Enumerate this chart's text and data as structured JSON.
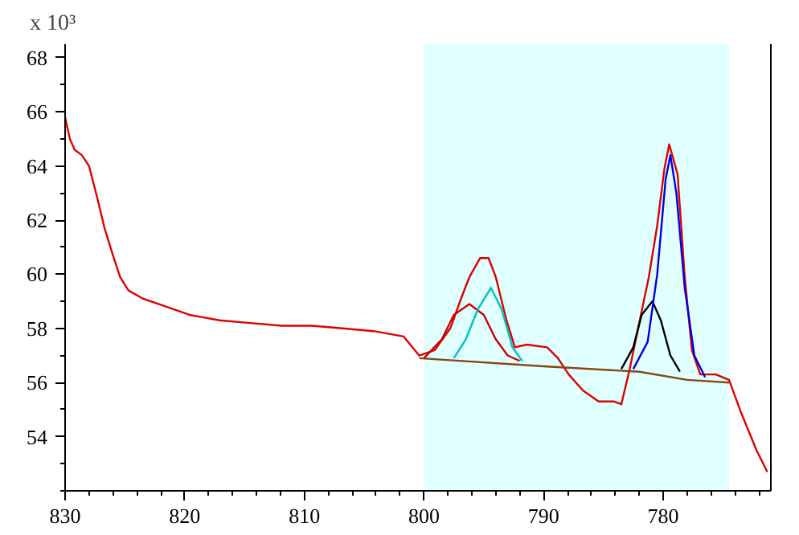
{
  "chart_data": {
    "type": "line",
    "ylabel": "x 10³",
    "xlim": [
      830,
      771
    ],
    "ylim": [
      52.0,
      68.5
    ],
    "xticks": [
      830,
      820,
      810,
      800,
      790,
      780
    ],
    "yticks": [
      54,
      56,
      58,
      60,
      62,
      64,
      66,
      68
    ],
    "grid": false,
    "marker": "none",
    "line_style": "solid",
    "bands": [
      {
        "axis": "x",
        "from": 800,
        "to": 774.5,
        "label": null,
        "color": "#e0ffff"
      }
    ],
    "series": [
      {
        "color": "#dd0000",
        "x": [
          830,
          829.6,
          829.2,
          828.6,
          828.0,
          827.3,
          826.7,
          826.0,
          825.4,
          824.7,
          823.5,
          822.2,
          820.9,
          819.6,
          817.1,
          814.5,
          811.9,
          809.4,
          806.8,
          804.2,
          801.7,
          800.4,
          799.1,
          797.8,
          796.9,
          796.2,
          795.3,
          794.6,
          794.0,
          793.1,
          792.4,
          791.4,
          789.7,
          788.8,
          787.9,
          786.7,
          785.4,
          784.1,
          783.5,
          782.8,
          782.1,
          781.2,
          780.5,
          779.9,
          779.5,
          778.8,
          778.2,
          777.6,
          776.9,
          775.6,
          774.5,
          773.5,
          772.2,
          771.3
        ],
        "values": [
          65.8,
          65.0,
          64.6,
          64.4,
          64.0,
          62.8,
          61.7,
          60.7,
          59.9,
          59.4,
          59.1,
          58.9,
          58.7,
          58.5,
          58.3,
          58.2,
          58.1,
          58.1,
          58.0,
          57.9,
          57.7,
          57.0,
          57.2,
          58.0,
          59.1,
          59.9,
          60.6,
          60.6,
          59.9,
          58.3,
          57.3,
          57.4,
          57.3,
          56.9,
          56.3,
          55.7,
          55.3,
          55.3,
          55.2,
          56.5,
          58.0,
          59.9,
          61.8,
          63.9,
          64.8,
          63.7,
          59.9,
          57.2,
          56.3,
          56.3,
          56.1,
          54.9,
          53.5,
          52.7
        ]
      },
      {
        "color": "#8b4513",
        "x": [
          800.4,
          790,
          782,
          778,
          774.5
        ],
        "values": [
          56.9,
          56.6,
          56.4,
          56.1,
          56.0
        ]
      },
      {
        "color": "#cc0000",
        "x": [
          800.0,
          798.5,
          797.5,
          796.2,
          795,
          794,
          793,
          792
        ],
        "values": [
          56.9,
          57.6,
          58.5,
          58.9,
          58.5,
          57.6,
          57.0,
          56.8
        ]
      },
      {
        "color": "#00c0c0",
        "x": [
          797.5,
          796.5,
          795.5,
          794.4,
          793.5,
          792.6,
          791.8
        ],
        "values": [
          56.9,
          57.6,
          58.7,
          59.5,
          58.7,
          57.3,
          56.8
        ]
      },
      {
        "color": "#000000",
        "x": [
          783.5,
          782.5,
          781.8,
          780.9,
          780.2,
          779.4,
          778.6
        ],
        "values": [
          56.5,
          57.3,
          58.5,
          59.0,
          58.3,
          57.0,
          56.4
        ]
      },
      {
        "color": "#0000dd",
        "x": [
          782.5,
          781.3,
          780.5,
          779.8,
          779.4,
          778.9,
          778.2,
          777.4,
          776.5
        ],
        "values": [
          56.5,
          57.5,
          60.0,
          63.5,
          64.4,
          63.0,
          59.5,
          57.0,
          56.2
        ]
      }
    ]
  }
}
